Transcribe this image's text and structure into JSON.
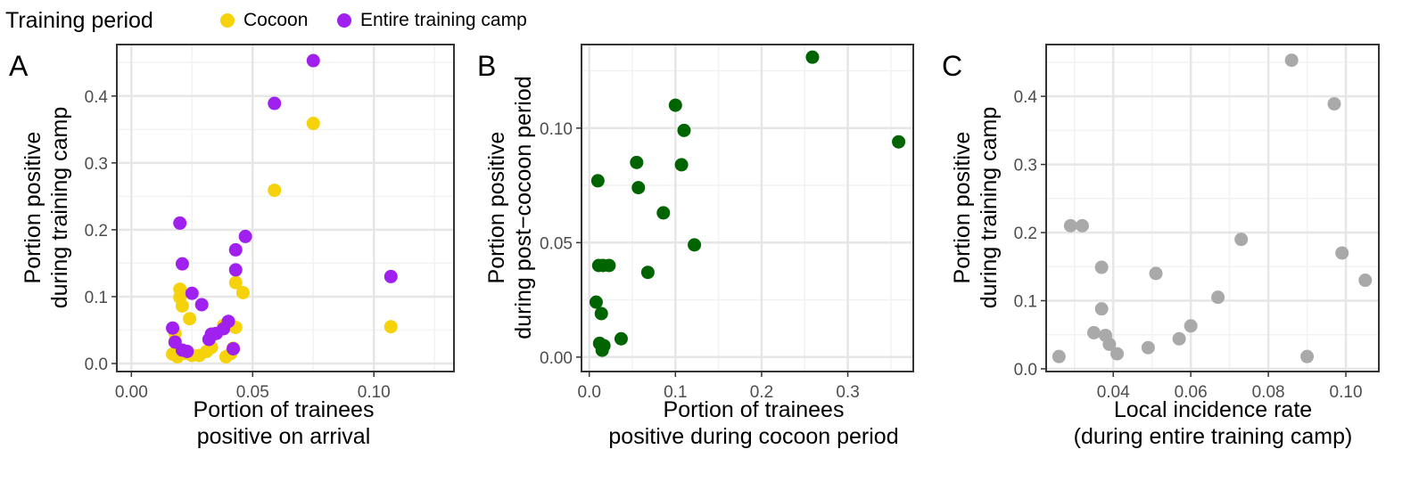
{
  "legend": {
    "title": "Training period",
    "items": [
      {
        "label": "Cocoon",
        "color": "#F5D20A"
      },
      {
        "label": "Entire training camp",
        "color": "#A020F0"
      }
    ]
  },
  "chart_data": [
    {
      "panel": "A",
      "type": "scatter",
      "xlabel": [
        "Portion of trainees",
        "positive on arrival"
      ],
      "ylabel": [
        "Portion positive",
        "during training camp"
      ],
      "xlim": [
        -0.006,
        0.133
      ],
      "ylim": [
        -0.012,
        0.477
      ],
      "xticks": [
        0,
        0.05,
        0.1
      ],
      "xtick_labels": [
        "0.00",
        "0.05",
        "0.10"
      ],
      "yticks": [
        0,
        0.1,
        0.2,
        0.3,
        0.4
      ],
      "ytick_labels": [
        "0.0",
        "0.1",
        "0.2",
        "0.3",
        "0.4"
      ],
      "grid": true,
      "series": [
        {
          "name": "Cocoon",
          "color": "#F5D20A",
          "points": [
            [
              0.075,
              0.359
            ],
            [
              0.059,
              0.259
            ],
            [
              0.107,
              0.055
            ],
            [
              0.043,
              0.121
            ],
            [
              0.046,
              0.106
            ],
            [
              0.02,
              0.111
            ],
            [
              0.02,
              0.099
            ],
            [
              0.021,
              0.086
            ],
            [
              0.024,
              0.067
            ],
            [
              0.043,
              0.054
            ],
            [
              0.038,
              0.057
            ],
            [
              0.018,
              0.045
            ],
            [
              0.018,
              0.033
            ],
            [
              0.017,
              0.014
            ],
            [
              0.019,
              0.01
            ],
            [
              0.022,
              0.015
            ],
            [
              0.025,
              0.012
            ],
            [
              0.028,
              0.012
            ],
            [
              0.031,
              0.018
            ],
            [
              0.033,
              0.024
            ],
            [
              0.039,
              0.01
            ],
            [
              0.041,
              0.015
            ],
            [
              0.042,
              0.023
            ]
          ]
        },
        {
          "name": "Entire training camp",
          "color": "#A020F0",
          "points": [
            [
              0.075,
              0.453
            ],
            [
              0.059,
              0.389
            ],
            [
              0.107,
              0.13
            ],
            [
              0.02,
              0.21
            ],
            [
              0.047,
              0.19
            ],
            [
              0.043,
              0.17
            ],
            [
              0.021,
              0.149
            ],
            [
              0.043,
              0.14
            ],
            [
              0.025,
              0.105
            ],
            [
              0.029,
              0.088
            ],
            [
              0.04,
              0.063
            ],
            [
              0.038,
              0.052
            ],
            [
              0.017,
              0.053
            ],
            [
              0.033,
              0.044
            ],
            [
              0.035,
              0.045
            ],
            [
              0.032,
              0.036
            ],
            [
              0.018,
              0.032
            ],
            [
              0.021,
              0.02
            ],
            [
              0.023,
              0.018
            ],
            [
              0.042,
              0.022
            ]
          ]
        }
      ]
    },
    {
      "panel": "B",
      "type": "scatter",
      "xlabel": [
        "Portion of trainees",
        "positive during cocoon period"
      ],
      "ylabel": [
        "Portion positive",
        "during post−cocoon period"
      ],
      "xlim": [
        -0.009,
        0.376
      ],
      "ylim": [
        -0.0063,
        0.1365
      ],
      "xticks": [
        0,
        0.1,
        0.2,
        0.3
      ],
      "xtick_labels": [
        "0.0",
        "0.1",
        "0.2",
        "0.3"
      ],
      "yticks": [
        0,
        0.05,
        0.1
      ],
      "ytick_labels": [
        "0.00",
        "0.05",
        "0.10"
      ],
      "grid": true,
      "series": [
        {
          "name": "",
          "color": "#006400",
          "points": [
            [
              0.259,
              0.131
            ],
            [
              0.359,
              0.094
            ],
            [
              0.1,
              0.11
            ],
            [
              0.11,
              0.099
            ],
            [
              0.055,
              0.085
            ],
            [
              0.107,
              0.084
            ],
            [
              0.01,
              0.077
            ],
            [
              0.057,
              0.074
            ],
            [
              0.086,
              0.063
            ],
            [
              0.122,
              0.049
            ],
            [
              0.011,
              0.04
            ],
            [
              0.016,
              0.04
            ],
            [
              0.023,
              0.04
            ],
            [
              0.068,
              0.037
            ],
            [
              0.008,
              0.024
            ],
            [
              0.014,
              0.019
            ],
            [
              0.037,
              0.008
            ],
            [
              0.012,
              0.006
            ],
            [
              0.017,
              0.005
            ],
            [
              0.015,
              0.003
            ]
          ]
        }
      ]
    },
    {
      "panel": "C",
      "type": "scatter",
      "xlabel": [
        "Local incidence rate",
        "(during entire training camp)"
      ],
      "ylabel": [
        "Portion positive",
        "during training camp"
      ],
      "xlim": [
        0.0227,
        0.1085
      ],
      "ylim": [
        -0.004,
        0.476
      ],
      "xticks": [
        0.04,
        0.06,
        0.08,
        0.1
      ],
      "xtick_labels": [
        "0.04",
        "0.06",
        "0.08",
        "0.10"
      ],
      "yticks": [
        0,
        0.1,
        0.2,
        0.3,
        0.4
      ],
      "ytick_labels": [
        "0.0",
        "0.1",
        "0.2",
        "0.3",
        "0.4"
      ],
      "grid": true,
      "series": [
        {
          "name": "",
          "color": "#A9A9A9",
          "points": [
            [
              0.086,
              0.453
            ],
            [
              0.097,
              0.389
            ],
            [
              0.073,
              0.19
            ],
            [
              0.099,
              0.17
            ],
            [
              0.105,
              0.13
            ],
            [
              0.029,
              0.21
            ],
            [
              0.032,
              0.21
            ],
            [
              0.037,
              0.149
            ],
            [
              0.051,
              0.14
            ],
            [
              0.067,
              0.105
            ],
            [
              0.037,
              0.088
            ],
            [
              0.06,
              0.063
            ],
            [
              0.057,
              0.044
            ],
            [
              0.035,
              0.053
            ],
            [
              0.038,
              0.049
            ],
            [
              0.039,
              0.036
            ],
            [
              0.041,
              0.022
            ],
            [
              0.049,
              0.031
            ],
            [
              0.026,
              0.018
            ],
            [
              0.09,
              0.018
            ]
          ]
        }
      ]
    }
  ]
}
